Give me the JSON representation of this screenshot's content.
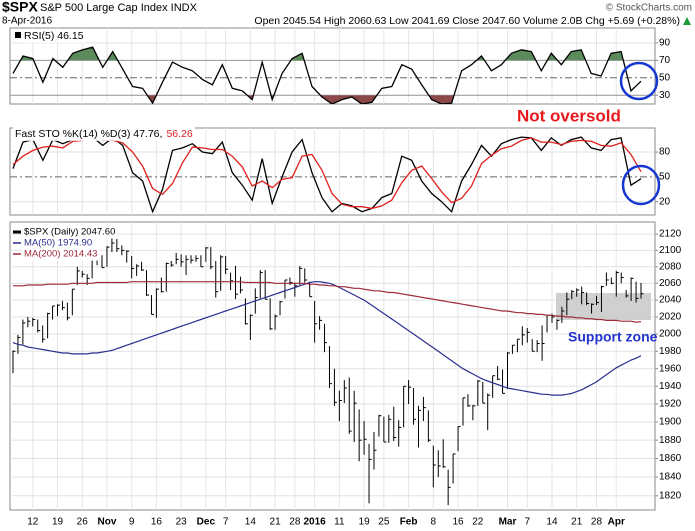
{
  "header": {
    "symbol": "$SPX",
    "name": "S&P 500 Large Cap Index INDX",
    "source": "© StockCharts.com",
    "date": "8-Apr-2016",
    "quote": "Open 2045.54 High 2060.63 Low 2041.69 Close 2047.60 Volume 2.0B Chg +5.69 (+0.28%)"
  },
  "chart_data": [
    {
      "type": "line",
      "title": "RSI(5) 46.15",
      "ylim": [
        20,
        107
      ],
      "yticks": [
        30,
        50,
        70,
        90
      ],
      "grid": true,
      "midline": 50,
      "overbought": 70,
      "oversold": 30,
      "overbought_color": "#5b8a5b",
      "oversold_color": "#8a4848",
      "series": [
        {
          "color": "#000000",
          "values": [
            55,
            75,
            72,
            45,
            72,
            62,
            78,
            82,
            85,
            62,
            80,
            60,
            40,
            38,
            21,
            45,
            68,
            62,
            58,
            48,
            42,
            65,
            38,
            35,
            25,
            68,
            25,
            55,
            72,
            78,
            40,
            28,
            20,
            25,
            28,
            20,
            22,
            38,
            40,
            65,
            60,
            42,
            25,
            20,
            21,
            58,
            65,
            75,
            58,
            65,
            78,
            82,
            80,
            58,
            78,
            65,
            80,
            82,
            55,
            52,
            78,
            80,
            35,
            46.15
          ]
        }
      ],
      "annotation": "Not oversold",
      "annotation_color": "#e8181c"
    },
    {
      "type": "line",
      "ylim": [
        4,
        109
      ],
      "yticks": [
        20,
        50,
        80
      ],
      "grid": true,
      "midline": 50,
      "series": [
        {
          "name": "Fast STO %K(14) %D(3) 47.76,",
          "color": "#000000",
          "values": [
            60,
            92,
            95,
            70,
            95,
            90,
            95,
            97,
            98,
            88,
            97,
            88,
            55,
            45,
            8,
            35,
            82,
            85,
            90,
            80,
            78,
            92,
            55,
            40,
            22,
            72,
            18,
            50,
            80,
            95,
            55,
            25,
            8,
            18,
            15,
            8,
            12,
            25,
            30,
            75,
            70,
            45,
            30,
            20,
            8,
            45,
            65,
            88,
            75,
            90,
            95,
            98,
            97,
            82,
            97,
            88,
            95,
            98,
            85,
            82,
            95,
            97,
            40,
            47.76
          ]
        },
        {
          "name": "56.26",
          "color": "#e0201c",
          "values": [
            65,
            75,
            82,
            86,
            87,
            85,
            93,
            94,
            97,
            94,
            94,
            91,
            80,
            63,
            36,
            29,
            42,
            67,
            86,
            85,
            83,
            83,
            75,
            62,
            39,
            45,
            37,
            47,
            49,
            75,
            77,
            58,
            30,
            17,
            14,
            14,
            12,
            15,
            22,
            43,
            58,
            63,
            48,
            32,
            19,
            24,
            39,
            66,
            76,
            84,
            87,
            94,
            97,
            92,
            92,
            89,
            93,
            94,
            93,
            88,
            87,
            91,
            77,
            56.26
          ]
        }
      ]
    },
    {
      "type": "hlc",
      "log": true,
      "grid": true,
      "ylim": [
        1805,
        2135
      ],
      "yticks": [
        1820,
        1840,
        1860,
        1880,
        1900,
        1920,
        1940,
        1960,
        1980,
        2000,
        2020,
        2040,
        2060,
        2080,
        2100,
        2120
      ],
      "categories": [
        null,
        null,
        null,
        null,
        "12",
        null,
        null,
        null,
        null,
        "19",
        null,
        null,
        null,
        null,
        "26",
        null,
        null,
        null,
        null,
        "Nov",
        null,
        null,
        null,
        null,
        "9",
        null,
        null,
        null,
        null,
        "16",
        null,
        null,
        null,
        null,
        "23",
        null,
        null,
        null,
        null,
        "Dec",
        null,
        null,
        null,
        "7",
        null,
        null,
        null,
        null,
        "14",
        null,
        null,
        null,
        null,
        "21",
        null,
        null,
        null,
        "28",
        null,
        null,
        null,
        "2016",
        null,
        null,
        null,
        null,
        "11",
        null,
        null,
        null,
        null,
        "19",
        null,
        null,
        null,
        "25",
        null,
        null,
        null,
        null,
        "Feb",
        null,
        null,
        null,
        null,
        "8",
        null,
        null,
        null,
        null,
        "16",
        null,
        null,
        null,
        "22",
        null,
        null,
        null,
        null,
        null,
        "Mar",
        null,
        null,
        null,
        "7",
        null,
        null,
        null,
        null,
        "14",
        null,
        null,
        null,
        null,
        "21",
        null,
        null,
        null,
        "28",
        null,
        null,
        null,
        "Apr",
        null,
        null,
        null,
        null,
        null
      ],
      "series": [
        {
          "name": "$SPX (Daily) 2047.60",
          "type": "hlc",
          "color": "#000000",
          "values": [
            1980,
            1996,
            2013,
            2015,
            2017,
            2004,
            1994,
            2024,
            2033,
            2034,
            2031,
            2019,
            2053,
            2075,
            2071,
            2066,
            2090,
            2089,
            2079,
            2104,
            2109,
            2102,
            2100,
            2099,
            2078,
            2081,
            2076,
            2046,
            2023,
            2053,
            2050,
            2084,
            2082,
            2089,
            2086,
            2089,
            2088,
            2090,
            2080,
            2103,
            2080,
            2050,
            2092,
            2077,
            2063,
            2047,
            2052,
            2012,
            2022,
            2043,
            2073,
            2041,
            2006,
            2021,
            2038,
            2064,
            2061,
            2057,
            2078,
            2064,
            2044,
            2012,
            2016,
            1990,
            1943,
            1922,
            1924,
            1938,
            1890,
            1921,
            1880,
            1881,
            1859,
            1869,
            1907,
            1878,
            1903,
            1883,
            1894,
            1940,
            1939,
            1903,
            1913,
            1916,
            1880,
            1853,
            1852,
            1851,
            1829,
            1865,
            1895,
            1927,
            1918,
            1918,
            1946,
            1921,
            1930,
            1952,
            1948,
            1932,
            1978,
            1987,
            1994,
            1999,
            2002,
            1980,
            1989,
            1989,
            2022,
            2020,
            2016,
            2027,
            2041,
            2050,
            2052,
            2049,
            2036,
            2035,
            2037,
            2056,
            2064,
            2060,
            2073,
            2067,
            2045,
            2066,
            2042,
            2047.6
          ],
          "high": [
            1981,
            1999,
            2017,
            2020,
            2019,
            2017,
            2010,
            2025,
            2033,
            2035,
            2039,
            2037,
            2053,
            2080,
            2075,
            2071,
            2090,
            2093,
            2094,
            2105,
            2116,
            2114,
            2106,
            2100,
            2093,
            2083,
            2086,
            2076,
            2046,
            2054,
            2067,
            2085,
            2087,
            2097,
            2095,
            2094,
            2094,
            2094,
            2094,
            2104,
            2104,
            2087,
            2094,
            2093,
            2073,
            2081,
            2068,
            2042,
            2023,
            2054,
            2076,
            2076,
            2042,
            2023,
            2039,
            2064,
            2067,
            2061,
            2081,
            2078,
            2062,
            2039,
            2021,
            2012,
            1986,
            1960,
            1935,
            1947,
            1950,
            1935,
            1914,
            1901,
            1876,
            1889,
            1908,
            1906,
            1908,
            1917,
            1902,
            1940,
            1947,
            1938,
            1918,
            1928,
            1913,
            1874,
            1869,
            1881,
            1848,
            1865,
            1895,
            1927,
            1931,
            1919,
            1947,
            1945,
            1932,
            1952,
            1963,
            1959,
            1979,
            1987,
            1994,
            2009,
            2007,
            1994,
            1993,
            2010,
            2022,
            2024,
            2017,
            2032,
            2049,
            2052,
            2054,
            2056,
            2049,
            2036,
            2045,
            2057,
            2073,
            2067,
            2075,
            2073,
            2052,
            2067,
            2062,
            2060.63
          ],
          "low": [
            1955,
            1977,
            1988,
            2008,
            2009,
            2002,
            1990,
            1995,
            2017,
            2021,
            2028,
            2016,
            2022,
            2058,
            2067,
            2058,
            2066,
            2082,
            2079,
            2080,
            2098,
            2098,
            2094,
            2085,
            2066,
            2069,
            2075,
            2045,
            2023,
            2019,
            2049,
            2050,
            2080,
            2083,
            2080,
            2070,
            2084,
            2086,
            2080,
            2086,
            2077,
            2043,
            2051,
            2071,
            2052,
            2041,
            2048,
            2011,
            1993,
            2024,
            2042,
            2041,
            2005,
            2005,
            2022,
            2042,
            2058,
            2044,
            2058,
            2061,
            2044,
            1990,
            2005,
            1979,
            1938,
            1918,
            1901,
            1921,
            1887,
            1878,
            1857,
            1864,
            1812,
            1848,
            1884,
            1878,
            1877,
            1879,
            1873,
            1894,
            1920,
            1897,
            1872,
            1901,
            1878,
            1829,
            1840,
            1850,
            1810,
            1833,
            1868,
            1896,
            1917,
            1902,
            1918,
            1921,
            1891,
            1927,
            1947,
            1932,
            1937,
            1977,
            1979,
            1987,
            1990,
            1980,
            1979,
            1969,
            2002,
            2013,
            2005,
            2013,
            2022,
            2041,
            2044,
            2035,
            2034,
            2024,
            2034,
            2026,
            2057,
            2059,
            2044,
            2060,
            2043,
            2039,
            2037,
            2041.69
          ]
        },
        {
          "name": "MA(50) 1974.90",
          "type": "line",
          "color": "#2b2f8f",
          "values": [
            1990,
            1988,
            1987,
            1985,
            1984,
            1983,
            1982,
            1981,
            1980,
            1979,
            1978,
            1978,
            1977,
            1977,
            1977,
            1977,
            1978,
            1978,
            1979,
            1980,
            1981,
            1983,
            1985,
            1987,
            1989,
            1991,
            1993,
            1995,
            1997,
            1999,
            2001,
            2003,
            2005,
            2007,
            2009,
            2011,
            2013,
            2015,
            2017,
            2019,
            2021,
            2023,
            2025,
            2027,
            2029,
            2031,
            2033,
            2035,
            2037,
            2039,
            2041,
            2043,
            2045,
            2047,
            2049,
            2051,
            2053,
            2055,
            2057,
            2059,
            2061,
            2062,
            2062,
            2061,
            2060,
            2058,
            2055,
            2052,
            2049,
            2046,
            2043,
            2040,
            2036,
            2032,
            2028,
            2024,
            2020,
            2016,
            2012,
            2008,
            2004,
            2000,
            1996,
            1992,
            1988,
            1984,
            1980,
            1976,
            1972,
            1968,
            1964,
            1960,
            1957,
            1954,
            1951,
            1948,
            1946,
            1944,
            1942,
            1940,
            1938,
            1937,
            1936,
            1935,
            1934,
            1933,
            1932,
            1931,
            1931,
            1930,
            1930,
            1930,
            1931,
            1932,
            1934,
            1936,
            1939,
            1942,
            1945,
            1949,
            1953,
            1957,
            1961,
            1964,
            1967,
            1970,
            1972,
            1974.9
          ]
        },
        {
          "name": "MA(200) 2014.43",
          "type": "line",
          "color": "#9e2a3a",
          "values": [
            2057,
            2057,
            2057,
            2058,
            2058,
            2058,
            2058,
            2059,
            2059,
            2059,
            2059,
            2059,
            2060,
            2060,
            2060,
            2060,
            2060,
            2061,
            2061,
            2061,
            2061,
            2061,
            2061,
            2061,
            2062,
            2062,
            2062,
            2062,
            2062,
            2062,
            2062,
            2062,
            2062,
            2062,
            2062,
            2062,
            2062,
            2062,
            2062,
            2062,
            2062,
            2062,
            2062,
            2062,
            2062,
            2062,
            2062,
            2061,
            2061,
            2061,
            2061,
            2061,
            2061,
            2060,
            2060,
            2060,
            2060,
            2060,
            2060,
            2060,
            2059,
            2059,
            2058,
            2058,
            2057,
            2057,
            2056,
            2056,
            2055,
            2054,
            2054,
            2053,
            2052,
            2051,
            2051,
            2050,
            2049,
            2049,
            2048,
            2047,
            2046,
            2045,
            2044,
            2043,
            2042,
            2041,
            2040,
            2039,
            2038,
            2037,
            2036,
            2035,
            2034,
            2033,
            2032,
            2031,
            2030,
            2029,
            2028,
            2027,
            2027,
            2026,
            2025,
            2025,
            2024,
            2024,
            2023,
            2023,
            2022,
            2022,
            2021,
            2021,
            2020,
            2020,
            2019,
            2019,
            2018,
            2018,
            2017,
            2017,
            2016,
            2016,
            2016,
            2015,
            2015,
            2015,
            2014,
            2014.43
          ]
        }
      ],
      "annotation": "Support zone",
      "annotation_color": "#2233cc"
    }
  ]
}
